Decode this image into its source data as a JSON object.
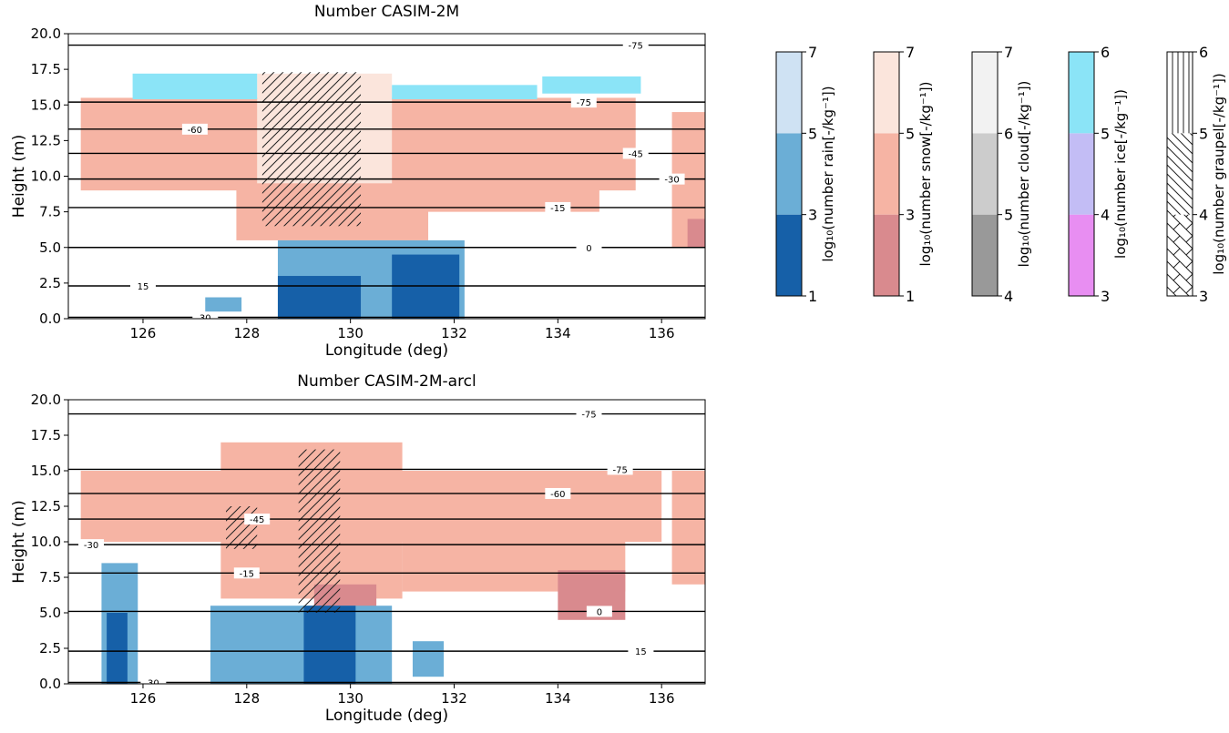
{
  "chart_data": [
    {
      "type": "contour",
      "title": "Number CASIM-2M",
      "x_label": "Longitude (deg)",
      "y_label": "Height (m)",
      "xlim": [
        124.56,
        136.84
      ],
      "ylim": [
        0,
        20
      ],
      "xticks": [
        126,
        128,
        130,
        132,
        134,
        136
      ],
      "yticks": [
        {
          "value": 0,
          "label": "0.0"
        },
        {
          "value": 2.5,
          "label": "2.5"
        },
        {
          "value": 5,
          "label": "5.0"
        },
        {
          "value": 7.5,
          "label": "7.5"
        },
        {
          "value": 10,
          "label": "10.0"
        },
        {
          "value": 12.5,
          "label": "12.5"
        },
        {
          "value": 15,
          "label": "15.0"
        },
        {
          "value": 17.5,
          "label": "17.5"
        },
        {
          "value": 20,
          "label": "20.0"
        }
      ],
      "regions": [
        {
          "color": "#f6b4a4",
          "x": [
            124.8,
            135.5
          ],
          "y": [
            9,
            15.5
          ]
        },
        {
          "color": "#f6b4a4",
          "x": [
            127.8,
            131.5
          ],
          "y": [
            5.5,
            10
          ]
        },
        {
          "color": "#f6b4a4",
          "x": [
            130.5,
            134.8
          ],
          "y": [
            7.5,
            13
          ]
        },
        {
          "color": "#f6b4a4",
          "x": [
            136.2,
            136.84
          ],
          "y": [
            5,
            14.5
          ]
        },
        {
          "color": "#d98a8e",
          "x": [
            136.5,
            136.84
          ],
          "y": [
            5,
            7
          ]
        },
        {
          "color": "#fbe5dc",
          "x": [
            128.2,
            130.8
          ],
          "y": [
            9.5,
            17.2
          ]
        },
        {
          "color": "#8be4f7",
          "x": [
            125.8,
            128.2
          ],
          "y": [
            15.4,
            17.2
          ]
        },
        {
          "color": "#8be4f7",
          "x": [
            130.8,
            133.6
          ],
          "y": [
            15.4,
            16.4
          ]
        },
        {
          "color": "#8be4f7",
          "x": [
            133.7,
            135.6
          ],
          "y": [
            15.8,
            17
          ]
        },
        {
          "color": "#6baed6",
          "x": [
            127.2,
            127.9
          ],
          "y": [
            0.5,
            1.5
          ]
        },
        {
          "color": "#6baed6",
          "x": [
            128.6,
            132.2
          ],
          "y": [
            0,
            5.5
          ]
        },
        {
          "color": "#1660a8",
          "x": [
            128.6,
            130.2
          ],
          "y": [
            0,
            3
          ]
        },
        {
          "color": "#1660a8",
          "x": [
            130.8,
            132.1
          ],
          "y": [
            0,
            4.5
          ]
        },
        {
          "color": "none",
          "hatch": "fwd",
          "x": [
            128.3,
            130.2
          ],
          "y": [
            6.5,
            17.3
          ]
        }
      ],
      "contours": [
        {
          "level": -75,
          "height": 19.2,
          "label_x": 135.5
        },
        {
          "level": -75,
          "height": 15.2,
          "label_x": 134.5
        },
        {
          "level": -60,
          "height": 13.3,
          "label_x": 127
        },
        {
          "level": -45,
          "height": 11.6,
          "label_x": 135.5
        },
        {
          "level": -30,
          "height": 9.8,
          "label_x": 136.2
        },
        {
          "level": -15,
          "height": 7.8,
          "label_x": 134
        },
        {
          "level": 0,
          "height": 5,
          "label_x": 134.6
        },
        {
          "level": 15,
          "height": 2.3,
          "label_x": 126
        },
        {
          "level": 30,
          "height": 0.1,
          "label_x": 127.2
        }
      ]
    },
    {
      "type": "contour",
      "title": "Number CASIM-2M-arcl",
      "x_label": "Longitude (deg)",
      "y_label": "Height (m)",
      "xlim": [
        124.56,
        136.84
      ],
      "ylim": [
        0,
        20
      ],
      "xticks": [
        126,
        128,
        130,
        132,
        134,
        136
      ],
      "yticks": [
        {
          "value": 0,
          "label": "0.0"
        },
        {
          "value": 2.5,
          "label": "2.5"
        },
        {
          "value": 5,
          "label": "5.0"
        },
        {
          "value": 7.5,
          "label": "7.5"
        },
        {
          "value": 10,
          "label": "10.0"
        },
        {
          "value": 12.5,
          "label": "12.5"
        },
        {
          "value": 15,
          "label": "15.0"
        },
        {
          "value": 17.5,
          "label": "17.5"
        },
        {
          "value": 20,
          "label": "20.0"
        }
      ],
      "regions": [
        {
          "color": "#f6b4a4",
          "x": [
            124.8,
            136
          ],
          "y": [
            10,
            15
          ]
        },
        {
          "color": "#f6b4a4",
          "x": [
            127.5,
            131
          ],
          "y": [
            6,
            17
          ]
        },
        {
          "color": "#f6b4a4",
          "x": [
            131,
            135.3
          ],
          "y": [
            6.5,
            12
          ]
        },
        {
          "color": "#f6b4a4",
          "x": [
            136.2,
            136.84
          ],
          "y": [
            7,
            15
          ]
        },
        {
          "color": "#d98a8e",
          "x": [
            134,
            135.3
          ],
          "y": [
            4.5,
            8
          ]
        },
        {
          "color": "#d98a8e",
          "x": [
            129.3,
            130.5
          ],
          "y": [
            4.5,
            7
          ]
        },
        {
          "color": "#6baed6",
          "x": [
            125.2,
            125.9
          ],
          "y": [
            0,
            8.5
          ]
        },
        {
          "color": "#6baed6",
          "x": [
            127.3,
            130.8
          ],
          "y": [
            0,
            5.5
          ]
        },
        {
          "color": "#6baed6",
          "x": [
            131.2,
            131.8
          ],
          "y": [
            0.5,
            3
          ]
        },
        {
          "color": "#1660a8",
          "x": [
            125.3,
            125.7
          ],
          "y": [
            0,
            5
          ]
        },
        {
          "color": "#1660a8",
          "x": [
            129.1,
            130.1
          ],
          "y": [
            0,
            5.5
          ]
        },
        {
          "color": "none",
          "hatch": "fwd",
          "x": [
            129,
            129.8
          ],
          "y": [
            5,
            16.5
          ]
        },
        {
          "color": "none",
          "hatch": "fwd",
          "x": [
            127.6,
            128.2
          ],
          "y": [
            9.5,
            12.5
          ]
        }
      ],
      "contours": [
        {
          "level": -75,
          "height": 19,
          "label_x": 134.6
        },
        {
          "level": -75,
          "height": 15.1,
          "label_x": 135.2
        },
        {
          "level": -60,
          "height": 13.4,
          "label_x": 134
        },
        {
          "level": -45,
          "height": 11.6,
          "label_x": 128.2
        },
        {
          "level": -30,
          "height": 9.8,
          "label_x": 125
        },
        {
          "level": -15,
          "height": 7.8,
          "label_x": 128
        },
        {
          "level": 0,
          "height": 5.1,
          "label_x": 134.8
        },
        {
          "level": 15,
          "height": 2.3,
          "label_x": 135.6
        },
        {
          "level": 30,
          "height": 0.1,
          "label_x": 126.2
        }
      ]
    },
    {
      "type": "colorbar",
      "label": "log₁₀(number rain[-/kg⁻¹])",
      "ylim": [
        1,
        7
      ],
      "yticks": [
        1,
        3,
        5,
        7
      ],
      "colors": [
        "#1660a8",
        "#6baed6",
        "#cfe2f3"
      ]
    },
    {
      "type": "colorbar",
      "label": "log₁₀(number snow[-/kg⁻¹])",
      "ylim": [
        1,
        7
      ],
      "yticks": [
        1,
        3,
        5,
        7
      ],
      "colors": [
        "#d98a8e",
        "#f6b4a4",
        "#fbe5dc"
      ]
    },
    {
      "type": "colorbar",
      "label": "log₁₀(number cloud[-/kg⁻¹])",
      "ylim": [
        4,
        7
      ],
      "yticks": [
        4,
        5,
        6,
        7
      ],
      "colors": [
        "#999999",
        "#cccccc",
        "#f2f2f2"
      ]
    },
    {
      "type": "colorbar",
      "label": "log₁₀(number ice[-/kg⁻¹])",
      "ylim": [
        3,
        6
      ],
      "yticks": [
        3,
        4,
        5,
        6
      ],
      "colors": [
        "#e88ef2",
        "#c3bdf5",
        "#8be4f7"
      ]
    },
    {
      "type": "colorbar",
      "label": "log₁₀(number graupel[-/kg⁻¹])",
      "ylim": [
        3,
        6
      ],
      "yticks": [
        3,
        4,
        5,
        6
      ],
      "colors": [
        "#ffffff",
        "#ffffff",
        "#ffffff"
      ],
      "hatches": [
        "chev",
        "back",
        "vert"
      ]
    }
  ]
}
